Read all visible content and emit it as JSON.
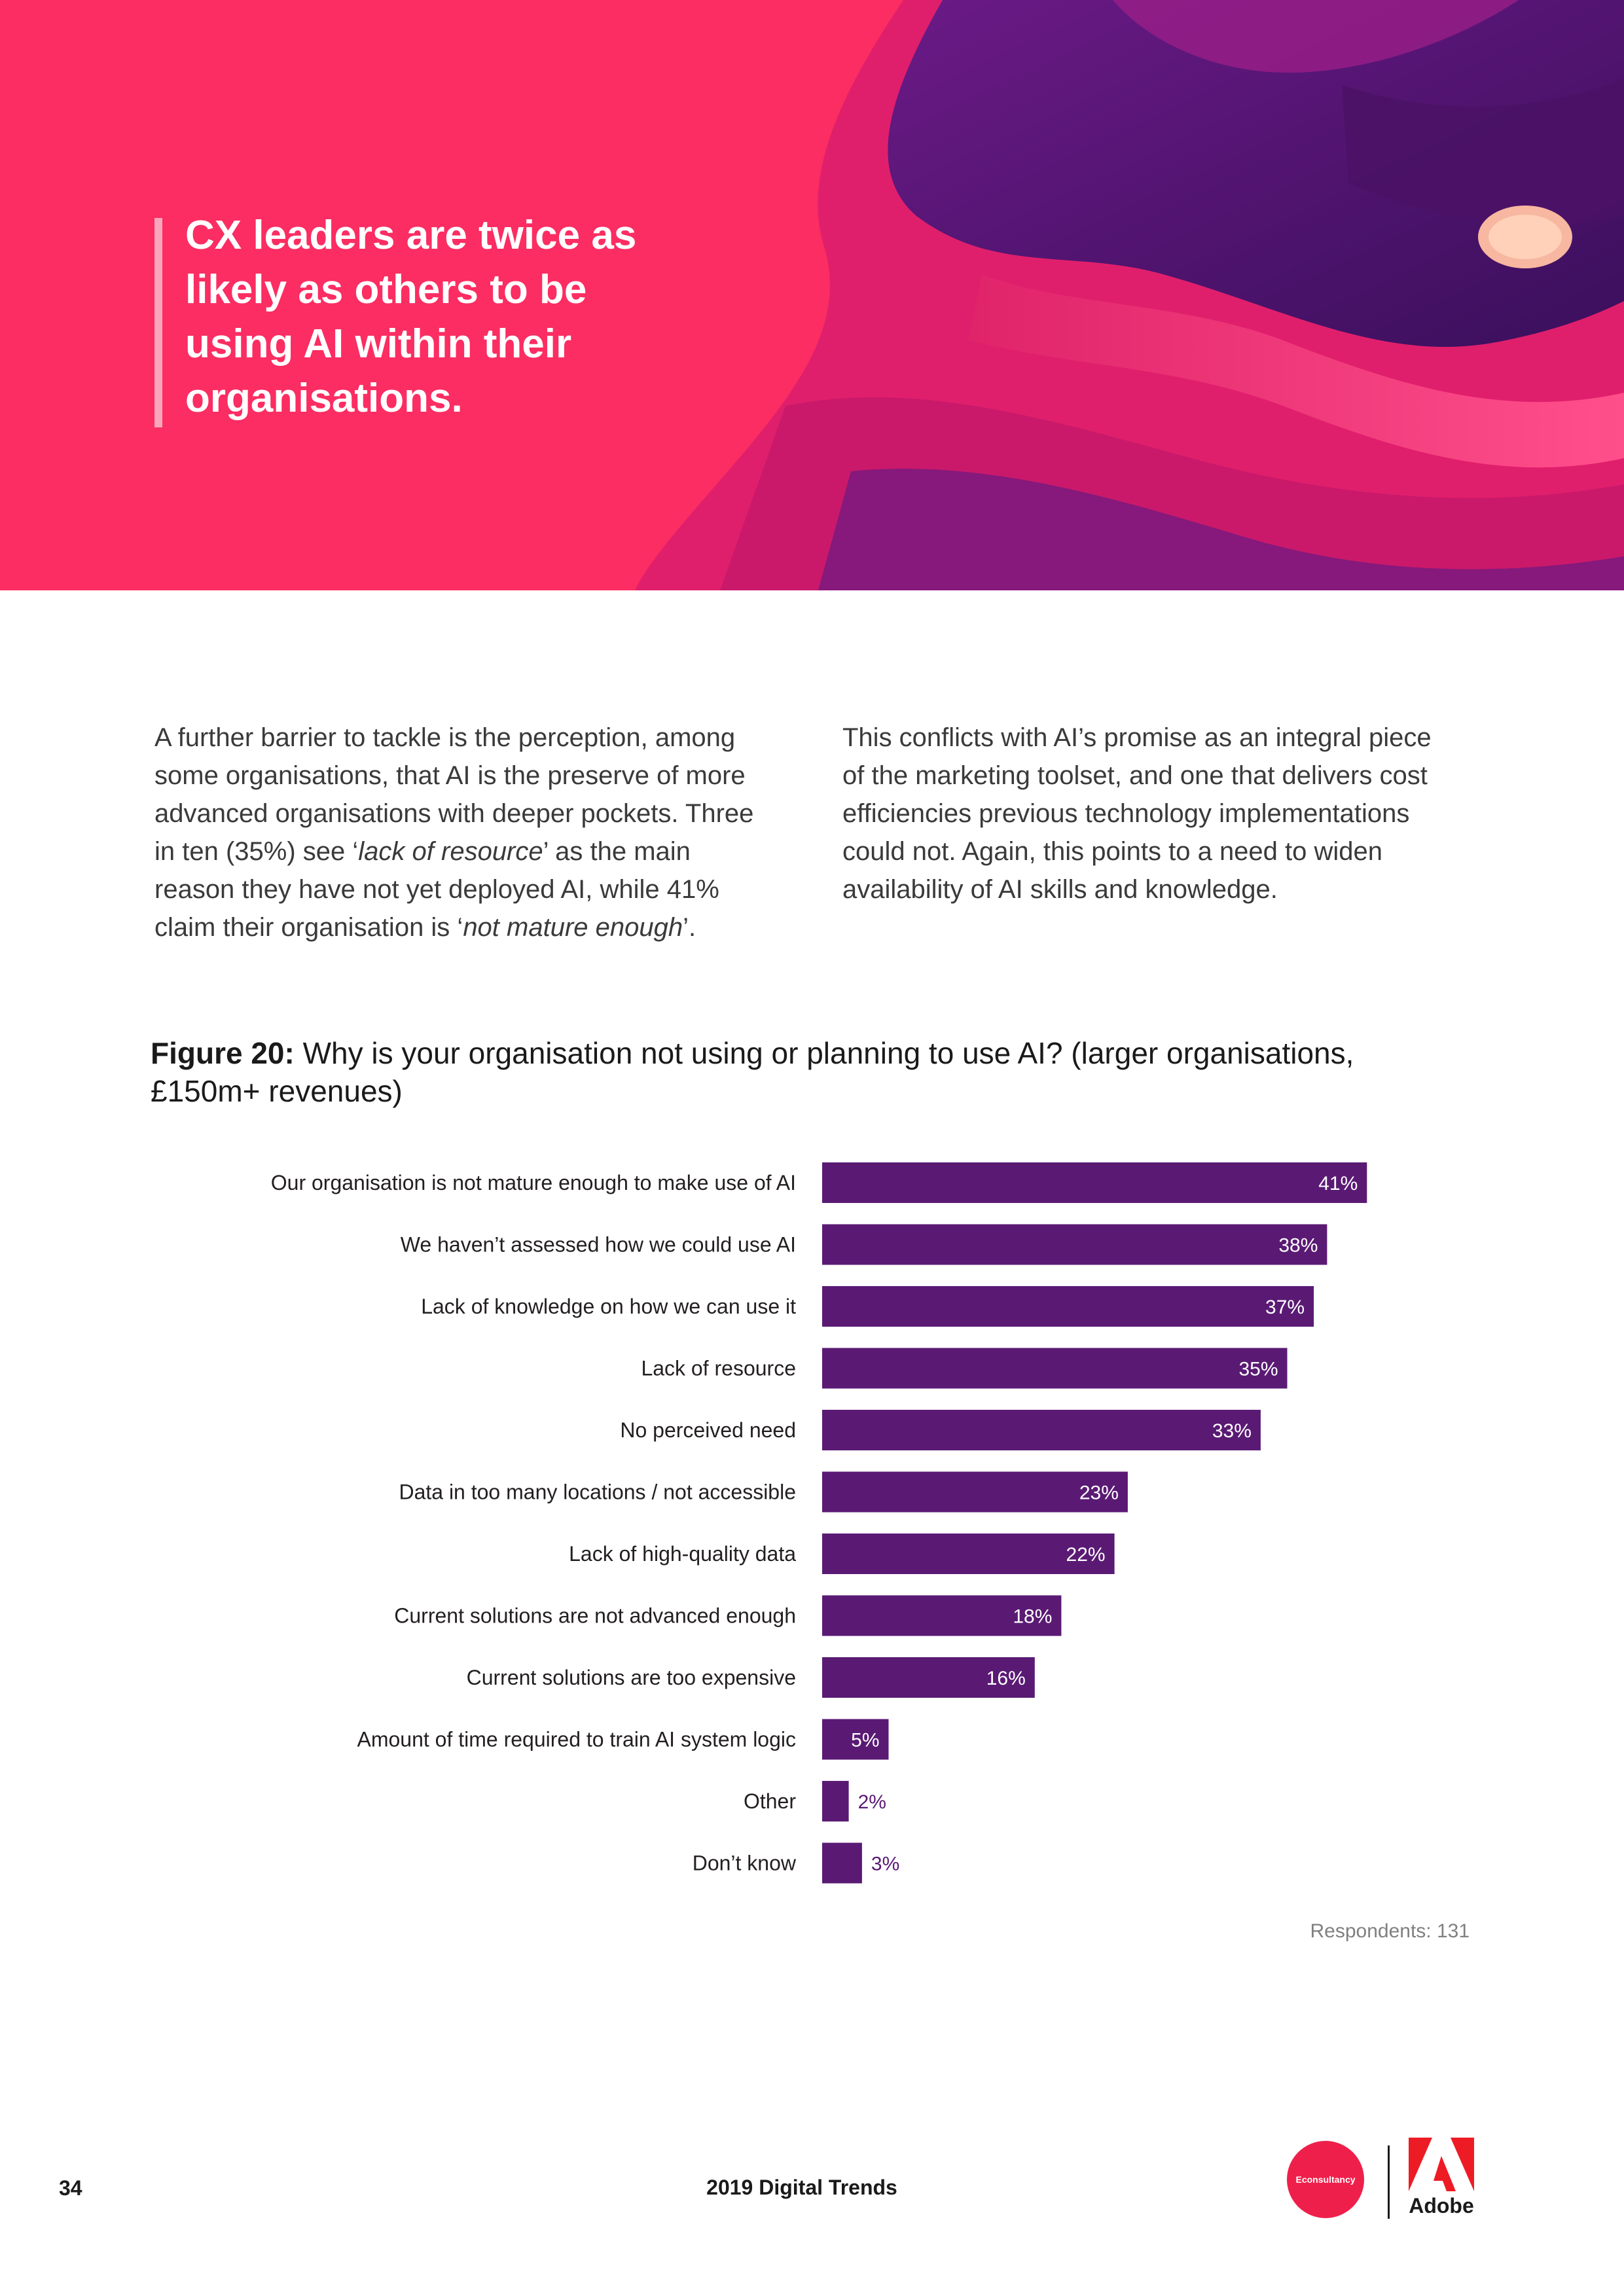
{
  "colors": {
    "hero": "#fb2d62",
    "bar": "#5a1a74",
    "accent_quote_bar": "#f7a6bb",
    "econsultancy": "#ef1f4b",
    "adobe": "#ed1c24"
  },
  "hero": {
    "quote": "CX leaders are twice as likely as others to be using AI within their organisations."
  },
  "body": {
    "left": {
      "text1": "A further barrier to tackle is the perception, among some organisations, that AI is the preserve of more advanced organisations with deeper pockets. Three in ten (35%) see ‘",
      "em1": "lack of resource",
      "text2": "’ as the main reason they have not yet deployed AI, while 41% claim their organisation is ‘",
      "em2": "not mature enough",
      "text3": "’."
    },
    "right": "This conflicts with AI’s promise as an integral piece of the marketing toolset, and one that delivers cost efficiencies previous technology implementations could not. Again, this points to a need to widen availability of AI skills and knowledge."
  },
  "figure": {
    "label": "Figure 20:",
    "title": " Why is your organisation not using or planning to use AI? (larger organisations, £150m+ revenues)"
  },
  "chart_data": {
    "type": "bar",
    "orientation": "horizontal",
    "title": "Why is your organisation not using or planning to use AI? (larger organisations, £150m+ revenues)",
    "categories": [
      "Our organisation is not mature enough to make use of AI",
      "We haven’t assessed how we could use AI",
      "Lack of knowledge on how we can use it",
      "Lack of resource",
      "No perceived need",
      "Data in too many locations / not accessible",
      "Lack of high-quality data",
      "Current solutions are not advanced enough",
      "Current solutions are too expensive",
      "Amount of time required to train AI system logic",
      "Other",
      "Don’t know"
    ],
    "values": [
      41,
      38,
      37,
      35,
      33,
      23,
      22,
      18,
      16,
      5,
      2,
      3
    ],
    "value_labels": [
      "41%",
      "38%",
      "37%",
      "35%",
      "33%",
      "23%",
      "22%",
      "18%",
      "16%",
      "5%",
      "2%",
      "3%"
    ],
    "unit": "%",
    "grid": false,
    "legend": "none"
  },
  "respondents": "Respondents: 131",
  "footer": {
    "page_number": "34",
    "title": "2019 Digital Trends",
    "econsultancy_logo": "Econsultancy",
    "adobe_logo": "Adobe"
  }
}
